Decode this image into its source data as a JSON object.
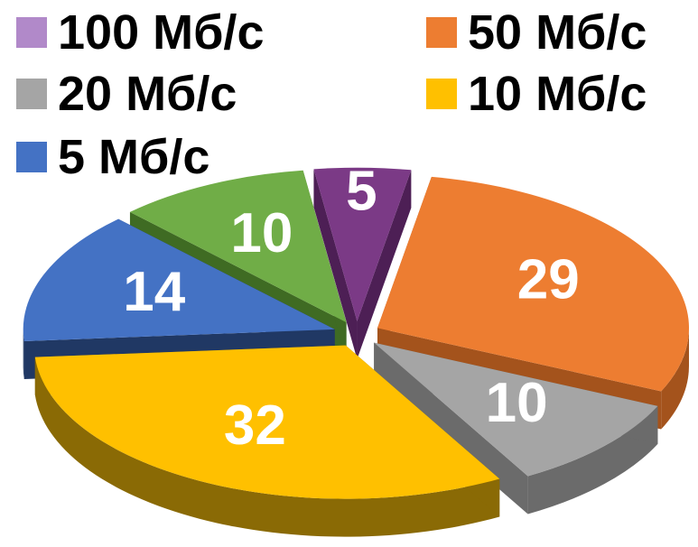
{
  "chart_data": {
    "type": "pie",
    "title": "",
    "legend_position": "top",
    "categories": [
      "100 Мб/с",
      "50 Мб/с",
      "20 Мб/с",
      "10 Мб/с",
      "5 Мб/с",
      "(no legend label)"
    ],
    "values": [
      5,
      29,
      10,
      32,
      14,
      10
    ],
    "colors": [
      "#7b3a86",
      "#ed7d31",
      "#a5a5a5",
      "#ffc000",
      "#4472c4",
      "#70ad47"
    ],
    "side_colors": [
      "#4d1f55",
      "#a4531c",
      "#6b6b6b",
      "#8a6a05",
      "#203864",
      "#3f6b23"
    ],
    "legend": [
      {
        "label": "100 Мб/с",
        "color": "#b189c9"
      },
      {
        "label": "50 Мб/с",
        "color": "#ed7d31"
      },
      {
        "label": "20 Мб/с",
        "color": "#a5a5a5"
      },
      {
        "label": "10 Мб/с",
        "color": "#ffc000"
      },
      {
        "label": "5 Мб/с",
        "color": "#4472c4"
      }
    ],
    "data_labels": [
      "5",
      "29",
      "10",
      "32",
      "14",
      "10"
    ]
  }
}
